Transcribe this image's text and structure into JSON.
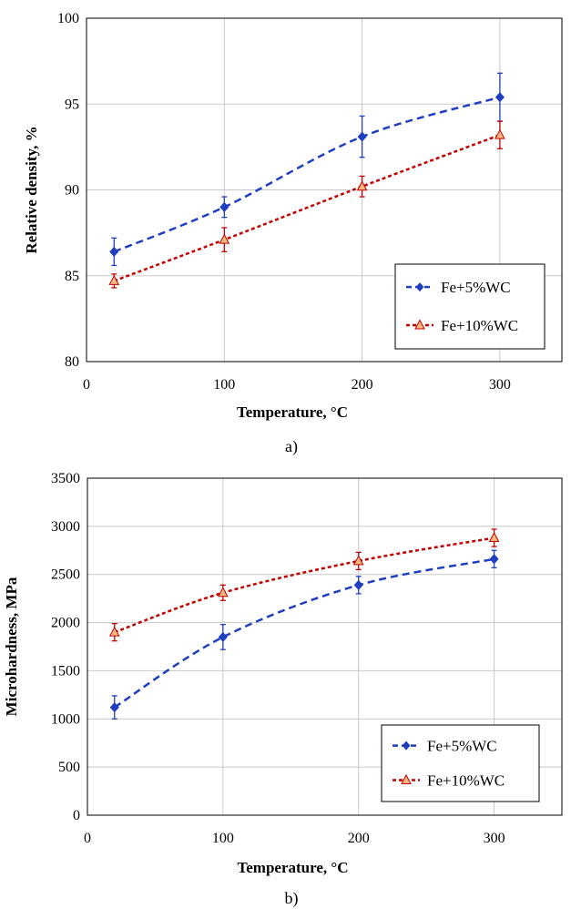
{
  "chart_data": [
    {
      "type": "line",
      "caption": "a)",
      "xlabel": "Temperature, °C",
      "ylabel": "Relative density, %",
      "xlim": [
        0,
        345
      ],
      "ylim": [
        80,
        100
      ],
      "xticks": [
        0,
        100,
        200,
        300
      ],
      "yticks": [
        80,
        85,
        90,
        95,
        100
      ],
      "grid": true,
      "legend": "bottom-right",
      "series": [
        {
          "name": "Fe+5%WC",
          "color": "#1f3fbf",
          "marker": "diamond",
          "line": "dashed",
          "x": [
            20,
            100,
            200,
            300
          ],
          "values": [
            86.4,
            89.0,
            93.1,
            95.4
          ],
          "error": [
            0.8,
            0.6,
            1.2,
            1.4
          ]
        },
        {
          "name": "Fe+10%WC",
          "color": "#c00000",
          "marker": "triangle",
          "line": "dotted",
          "x": [
            20,
            100,
            200,
            300
          ],
          "values": [
            84.7,
            87.1,
            90.2,
            93.2
          ],
          "error": [
            0.4,
            0.7,
            0.6,
            0.8
          ]
        }
      ]
    },
    {
      "type": "line",
      "caption": "b)",
      "xlabel": "Temperature, °C",
      "ylabel": "Microhardness, MPa",
      "xlim": [
        0,
        350
      ],
      "ylim": [
        0,
        3500
      ],
      "xticks": [
        0,
        100,
        200,
        300
      ],
      "yticks": [
        0,
        500,
        1000,
        1500,
        2000,
        2500,
        3000,
        3500
      ],
      "grid": true,
      "legend": "bottom-right",
      "series": [
        {
          "name": "Fe+5%WC",
          "color": "#1f3fbf",
          "marker": "diamond",
          "line": "dashed",
          "x": [
            20,
            100,
            200,
            300
          ],
          "values": [
            1120,
            1850,
            2390,
            2660
          ],
          "error": [
            120,
            130,
            90,
            90
          ]
        },
        {
          "name": "Fe+10%WC",
          "color": "#c00000",
          "marker": "triangle",
          "line": "dotted",
          "x": [
            20,
            100,
            200,
            300
          ],
          "values": [
            1900,
            2310,
            2640,
            2880
          ],
          "error": [
            90,
            80,
            90,
            90
          ]
        }
      ]
    }
  ]
}
